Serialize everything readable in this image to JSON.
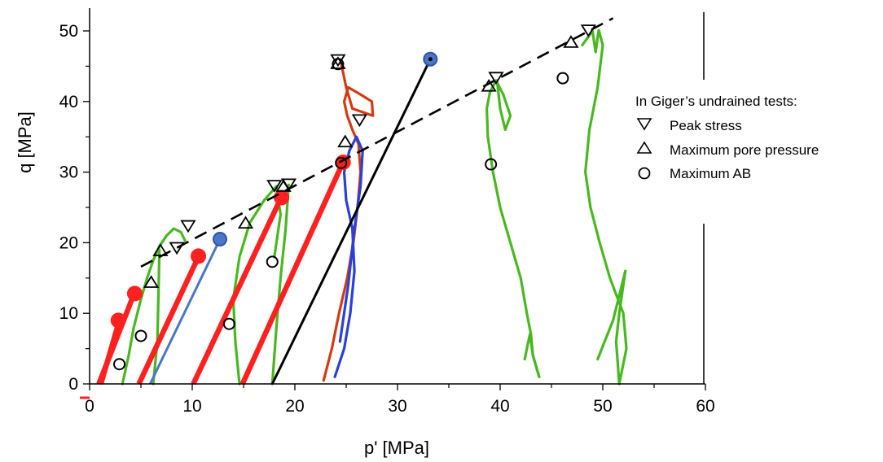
{
  "chart_data": {
    "type": "scatter",
    "title": "",
    "xlabel": "p' [MPa]",
    "ylabel": "q [MPa]",
    "xlim": [
      0,
      60
    ],
    "ylim": [
      0,
      50
    ],
    "x_ticks": [
      "0",
      "10",
      "20",
      "30",
      "40",
      "50",
      "60"
    ],
    "y_ticks": [
      "0",
      "10",
      "20",
      "30",
      "40",
      "50"
    ],
    "grid": false,
    "legend_position": "right",
    "legend": {
      "title": "In Giger’s undrained tests:",
      "entries": [
        {
          "marker": "triangle-down",
          "label": "Peak stress"
        },
        {
          "marker": "triangle-up",
          "label": "Maximum pore pressure"
        },
        {
          "marker": "circle",
          "label": "Maximum AB"
        }
      ]
    },
    "failure_envelope": {
      "style": "dashed",
      "color": "#000000",
      "x": [
        5,
        51
      ],
      "y": [
        16.6,
        51.8
      ]
    },
    "stress_path_lines": [
      {
        "color": "#ff2020",
        "width": "thick",
        "x": [
          0.9,
          4.4
        ],
        "y": [
          0,
          13
        ]
      },
      {
        "color": "#ff2020",
        "width": "thick",
        "x": [
          1.1,
          2.9
        ],
        "y": [
          0,
          9
        ]
      },
      {
        "color": "#ff2020",
        "width": "thick",
        "x": [
          4.8,
          10.6
        ],
        "y": [
          0,
          18
        ]
      },
      {
        "color": "#ff2020",
        "width": "thick",
        "x": [
          10.1,
          18.7
        ],
        "y": [
          0,
          26.5
        ]
      },
      {
        "color": "#ff2020",
        "width": "thick",
        "x": [
          14.9,
          24.7
        ],
        "y": [
          0,
          31.4
        ]
      },
      {
        "color": "#4a76c8",
        "width": "normal",
        "x": [
          5.9,
          12.7
        ],
        "y": [
          0,
          20.5
        ]
      },
      {
        "color": "#000000",
        "width": "normal",
        "x": [
          17.8,
          33.2
        ],
        "y": [
          0,
          46
        ]
      }
    ],
    "stress_path_endpoints": [
      {
        "color": "#ff2020",
        "x": 4.4,
        "y": 12.8
      },
      {
        "color": "#ff2020",
        "x": 2.8,
        "y": 9.0
      },
      {
        "color": "#ff2020",
        "x": 10.6,
        "y": 18.1
      },
      {
        "color": "#ff2020",
        "x": 18.7,
        "y": 26.4
      },
      {
        "color": "#ff2020",
        "x": 24.7,
        "y": 31.4
      },
      {
        "color": "#4a76c8",
        "x": 12.7,
        "y": 20.5
      },
      {
        "color": "#4a76c8",
        "x": 33.2,
        "y": 46.0
      }
    ],
    "undrained_paths": [
      {
        "color": "#49b820",
        "x": [
          3.2,
          3.8,
          4.3,
          5.0,
          5.6,
          6.2,
          6.8,
          7.5,
          8.2,
          8.9,
          9.3
        ],
        "y": [
          0,
          4,
          8,
          12,
          15,
          17.5,
          19.5,
          21,
          22,
          21.5,
          20.3
        ]
      },
      {
        "color": "#49b820",
        "x": [
          6.2,
          6.6,
          6.7,
          6.8
        ],
        "y": [
          0,
          6,
          12,
          19
        ]
      },
      {
        "color": "#49b820",
        "x": [
          14.6,
          14.2,
          14.0,
          14.6,
          15.6,
          17.0,
          18.2,
          18.6,
          18.0
        ],
        "y": [
          0,
          6,
          12,
          18,
          22.8,
          26,
          28,
          24,
          18
        ]
      },
      {
        "color": "#49b820",
        "x": [
          17.8,
          18.2,
          18.6,
          19.1,
          19.4
        ],
        "y": [
          0,
          8,
          15,
          22,
          28.2
        ]
      },
      {
        "color": "#d43a12",
        "x": [
          22.8,
          23.6,
          24.3,
          25.1,
          25.7,
          26.1,
          26.4,
          26.2,
          25.6,
          25.1,
          24.8,
          25.2,
          26.4,
          27.5,
          27.6,
          25.6,
          25.0,
          24.5
        ],
        "y": [
          0.5,
          5,
          10,
          15,
          20,
          25,
          30,
          34,
          36,
          38,
          40,
          42,
          41,
          40,
          38,
          39,
          42,
          45.5
        ]
      },
      {
        "color": "#2a40d8",
        "x": [
          23.9,
          24.8,
          25.4,
          25.8,
          25.6,
          25.0,
          24.8,
          25.3,
          26.0,
          26.6,
          26.4,
          25.8,
          25.2,
          24.4
        ],
        "y": [
          1,
          5,
          10,
          16,
          22,
          26,
          30,
          33,
          35,
          33,
          28,
          22,
          14,
          6
        ]
      },
      {
        "color": "#49b820",
        "x": [
          43.8,
          43.2,
          43.0,
          42.6,
          42.0,
          41.0,
          40.0,
          39.3,
          38.8,
          38.7,
          39.0,
          39.6,
          40.3,
          41.0,
          40.5,
          40.0,
          39.7
        ],
        "y": [
          1,
          4,
          7,
          10,
          15,
          20,
          25,
          30,
          35,
          39,
          41.3,
          43,
          41,
          38,
          36,
          39,
          43
        ]
      },
      {
        "color": "#49b820",
        "x": [
          51.6,
          52.3,
          52.0,
          50.7,
          49.7,
          48.8,
          48.3,
          48.7,
          49.5,
          50.0,
          49.6,
          49.3,
          49.0,
          48.0
        ],
        "y": [
          0,
          5,
          10,
          15,
          20,
          25,
          30,
          36,
          42,
          48,
          50.1,
          47,
          50,
          48
        ]
      }
    ],
    "undrained_paths_branches": [
      {
        "color": "#49b820",
        "x": [
          43.8,
          43.2,
          42.9,
          42.6,
          42.4
        ],
        "y": [
          1,
          4,
          7,
          5,
          3.5
        ]
      },
      {
        "color": "#49b820",
        "x": [
          51.6,
          51.3,
          51.6,
          52.2,
          51.0,
          49.5
        ],
        "y": [
          0,
          6,
          10,
          16,
          9,
          3.5
        ]
      }
    ],
    "peak_stress": {
      "x": [
        9.6,
        8.5,
        18.0,
        19.4,
        24.2,
        26.3,
        39.6,
        48.6
      ],
      "y": [
        22.4,
        19.3,
        28.1,
        28.3,
        45.9,
        37.4,
        43.4,
        50.1
      ]
    },
    "max_pore_pressure": {
      "x": [
        6.9,
        6.0,
        15.2,
        18.9,
        24.2,
        24.9,
        38.9,
        46.9
      ],
      "y": [
        18.9,
        14.4,
        22.8,
        28.0,
        45.4,
        34.3,
        42.2,
        48.4
      ]
    },
    "max_ab": {
      "x": [
        2.9,
        5.0,
        13.6,
        17.8,
        24.2,
        24.5,
        39.1,
        46.1
      ],
      "y": [
        2.8,
        6.8,
        8.5,
        17.3,
        45.3,
        31.3,
        31.1,
        43.3
      ]
    },
    "colors": {
      "drained_red": "#ff2020",
      "blue": "#4a76c8",
      "green": "#49b820",
      "orange": "#d43a12",
      "dark_blue": "#2a40d8",
      "black": "#000000"
    }
  }
}
